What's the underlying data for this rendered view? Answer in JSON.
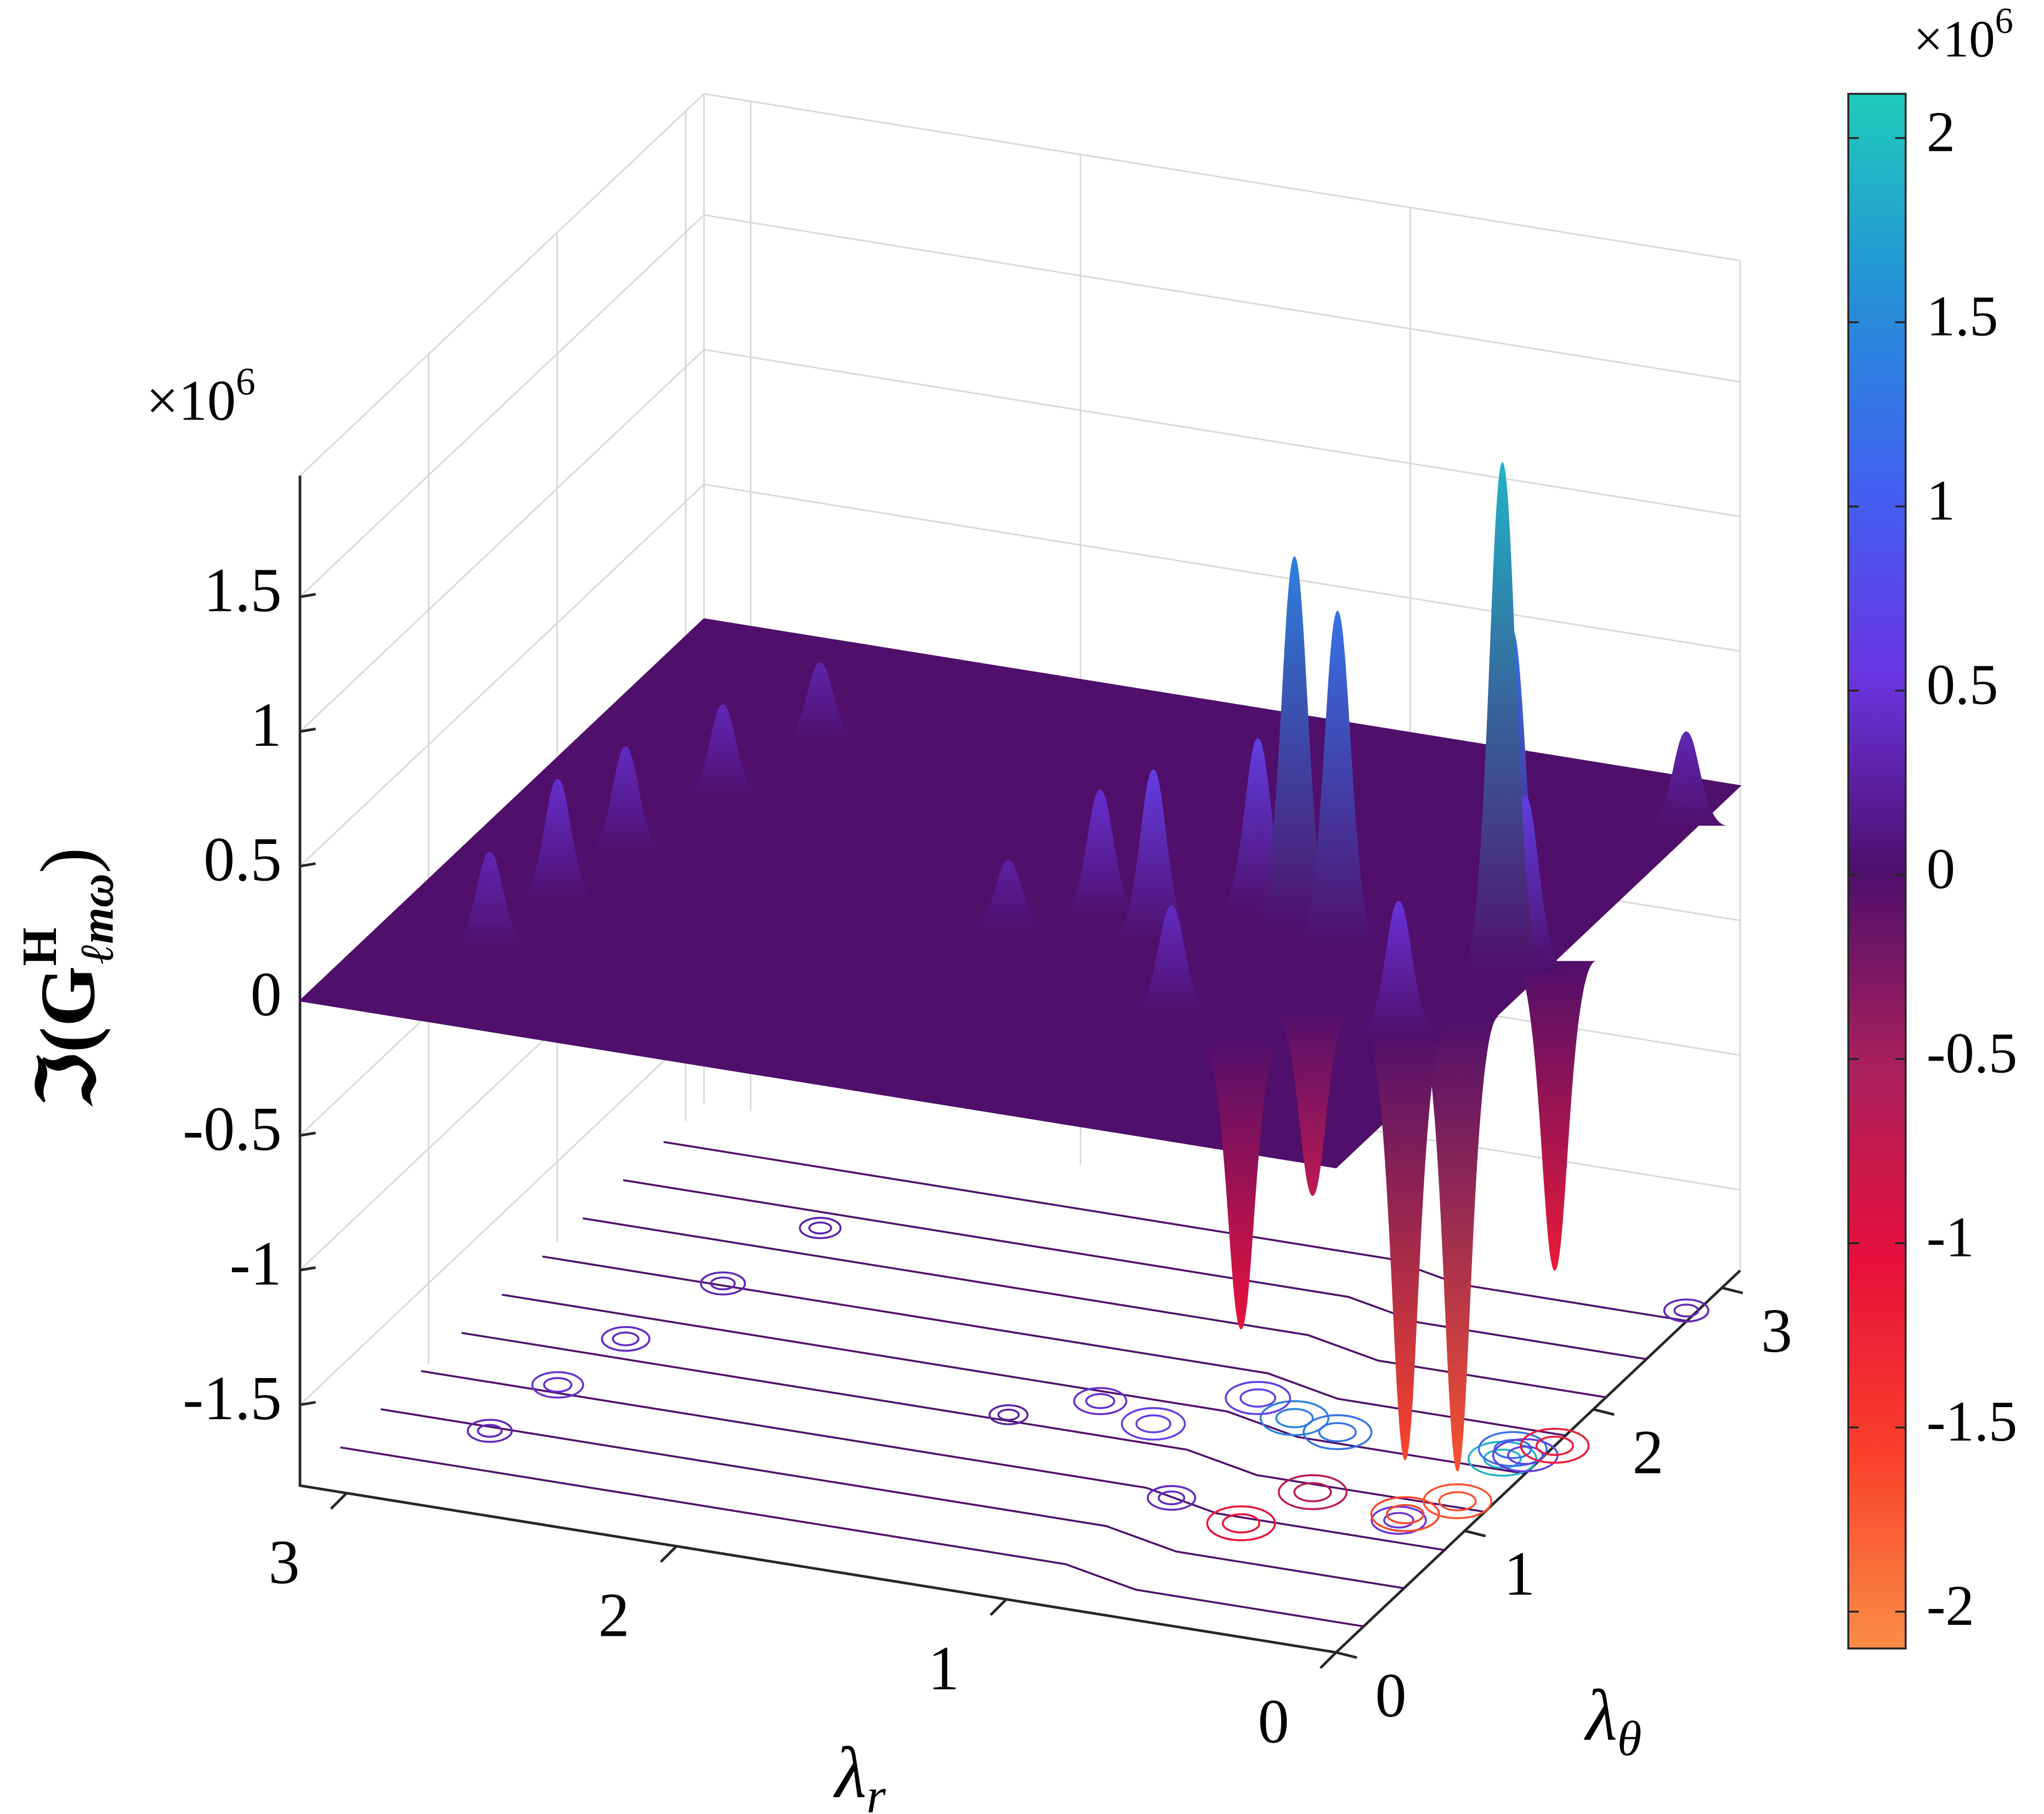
{
  "chart_data": {
    "type": "surface",
    "xlabel": [
      "λ",
      "r"
    ],
    "ylabel": [
      "λ",
      "θ"
    ],
    "zlabel": [
      "ℑ(",
      "G",
      "H",
      "ℓmω",
      ")"
    ],
    "exponent": [
      "×10",
      "6"
    ],
    "xlim": [
      0,
      3.14159
    ],
    "ylim": [
      0,
      3.14159
    ],
    "zlim": [
      -1.8,
      1.95
    ],
    "xticks": [
      0,
      1,
      2,
      3
    ],
    "yticks": [
      0,
      1,
      2,
      3
    ],
    "zticks": [
      -1.5,
      -1,
      -0.5,
      0,
      0.5,
      1,
      1.5
    ],
    "grid": true,
    "colorbar": {
      "clim": [
        -2.1,
        2.12
      ],
      "ticks": [
        -2,
        -1.5,
        -1,
        -0.5,
        0,
        0.5,
        1,
        1.5,
        2
      ],
      "colormap": [
        "#f98d45",
        "#f9402a",
        "#e8103c",
        "#a8205c",
        "#4d0f6b",
        "#6a35e0",
        "#4062f0",
        "#2492d6",
        "#1fcbbb"
      ],
      "exponent": [
        "×10",
        "6"
      ]
    },
    "surface": {
      "x": [
        2.8,
        2.75,
        2.7,
        2.6,
        2.5,
        0.03,
        0.1,
        0.75,
        0.6,
        0.1,
        1.1,
        1.3,
        0.9,
        0.85,
        0.2,
        0.05,
        1.5,
        0.2,
        0.1,
        0.6,
        0.0,
        0.5
      ],
      "y": [
        0.6,
        1.0,
        1.4,
        1.9,
        2.4,
        2.8,
        1.55,
        1.6,
        1.55,
        1.63,
        1.4,
        1.5,
        1.7,
        0.9,
        1.0,
        1.6,
        1.3,
        1.05,
        1.2,
        0.8,
        1.7,
        1.1
      ],
      "z": [
        0.35,
        0.45,
        0.4,
        0.35,
        0.3,
        0.35,
        1.9,
        1.4,
        1.25,
        1.24,
        0.63,
        0.47,
        0.65,
        0.4,
        0.5,
        0.65,
        0.26,
        -1.6,
        -1.69,
        -1.08,
        -1.15,
        -0.7
      ]
    }
  }
}
